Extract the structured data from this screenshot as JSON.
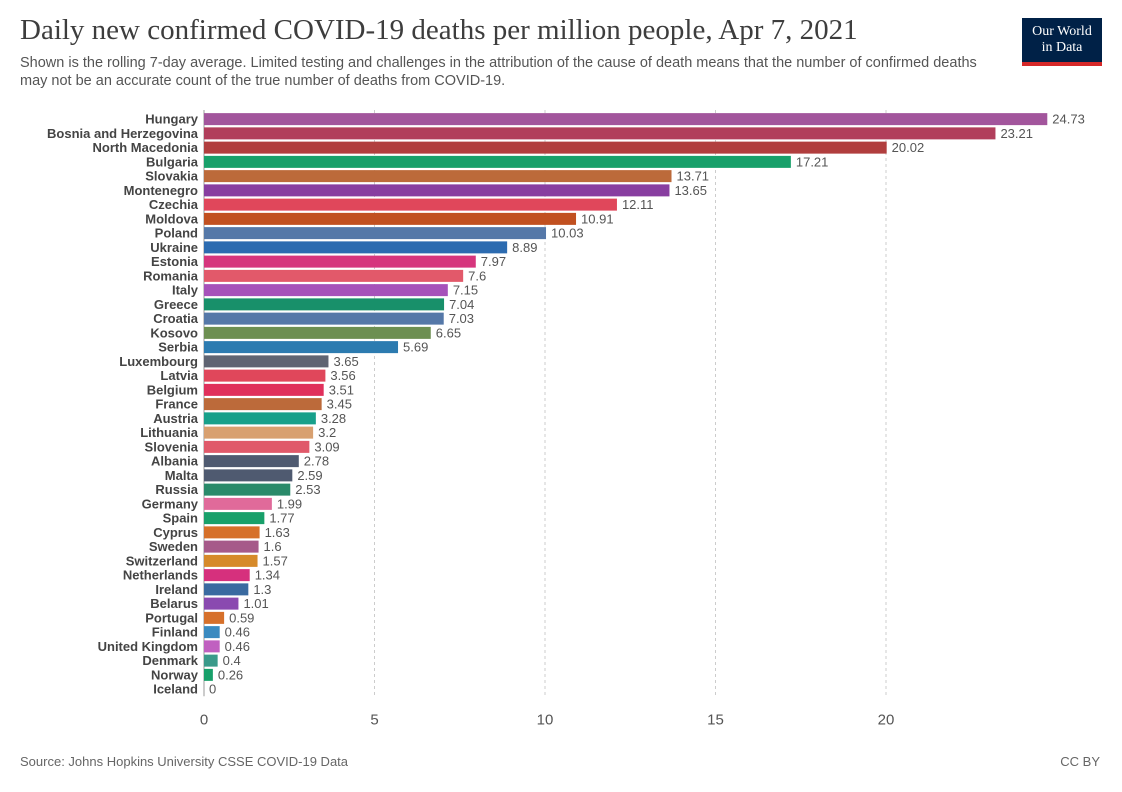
{
  "header": {
    "title": "Daily new confirmed COVID-19 deaths per million people, Apr 7, 2021",
    "subtitle": "Shown is the rolling 7-day average. Limited testing and challenges in the attribution of the cause of death means that the number of confirmed deaths may not be an accurate count of the true number of deaths from COVID-19.",
    "logo_line1": "Our World",
    "logo_line2": "in Data"
  },
  "footer": {
    "source": "Source: Johns Hopkins University CSSE COVID-19 Data",
    "license": "CC BY"
  },
  "chart_data": {
    "type": "bar",
    "orientation": "horizontal",
    "xlim": [
      0,
      25
    ],
    "x_ticks": [
      0,
      5,
      10,
      15,
      20
    ],
    "grid": true,
    "categories": [
      "Hungary",
      "Bosnia and Herzegovina",
      "North Macedonia",
      "Bulgaria",
      "Slovakia",
      "Montenegro",
      "Czechia",
      "Moldova",
      "Poland",
      "Ukraine",
      "Estonia",
      "Romania",
      "Italy",
      "Greece",
      "Croatia",
      "Kosovo",
      "Serbia",
      "Luxembourg",
      "Latvia",
      "Belgium",
      "France",
      "Austria",
      "Lithuania",
      "Slovenia",
      "Albania",
      "Malta",
      "Russia",
      "Germany",
      "Spain",
      "Cyprus",
      "Sweden",
      "Switzerland",
      "Netherlands",
      "Ireland",
      "Belarus",
      "Portugal",
      "Finland",
      "United Kingdom",
      "Denmark",
      "Norway",
      "Iceland"
    ],
    "values": [
      24.73,
      23.21,
      20.02,
      17.21,
      13.71,
      13.65,
      12.11,
      10.91,
      10.03,
      8.89,
      7.97,
      7.6,
      7.15,
      7.04,
      7.03,
      6.65,
      5.69,
      3.65,
      3.56,
      3.51,
      3.45,
      3.28,
      3.2,
      3.09,
      2.78,
      2.59,
      2.53,
      1.99,
      1.77,
      1.63,
      1.6,
      1.57,
      1.34,
      1.3,
      1.01,
      0.59,
      0.46,
      0.46,
      0.4,
      0.26,
      0
    ],
    "value_labels": [
      "24.73",
      "23.21",
      "20.02",
      "17.21",
      "13.71",
      "13.65",
      "12.11",
      "10.91",
      "10.03",
      "8.89",
      "7.97",
      "7.6",
      "7.15",
      "7.04",
      "7.03",
      "6.65",
      "5.69",
      "3.65",
      "3.56",
      "3.51",
      "3.45",
      "3.28",
      "3.2",
      "3.09",
      "2.78",
      "2.59",
      "2.53",
      "1.99",
      "1.77",
      "1.63",
      "1.6",
      "1.57",
      "1.34",
      "1.3",
      "1.01",
      "0.59",
      "0.46",
      "0.46",
      "0.4",
      "0.26",
      "0"
    ],
    "colors": [
      "#a2559c",
      "#b13e5b",
      "#b13e3e",
      "#18a06a",
      "#bc6a3a",
      "#883ea0",
      "#e0475b",
      "#c15020",
      "#5578a8",
      "#2c6bb0",
      "#d6357d",
      "#e2596a",
      "#a652ba",
      "#18906a",
      "#5578a8",
      "#6d8f52",
      "#2c7bb0",
      "#5f6472",
      "#e0475b",
      "#e0305b",
      "#bc6a3a",
      "#18a08a",
      "#d8a070",
      "#e0596a",
      "#4f5a70",
      "#4f5a70",
      "#2a8a6a",
      "#e06a9a",
      "#18a06a",
      "#d6702a",
      "#a65a8a",
      "#d68a2a",
      "#d6307d",
      "#3a6aa0",
      "#8a4ab0",
      "#d6702a",
      "#3a8ac0",
      "#c060c0",
      "#3a9a8a",
      "#18a06a",
      "#3a6aa0"
    ]
  }
}
